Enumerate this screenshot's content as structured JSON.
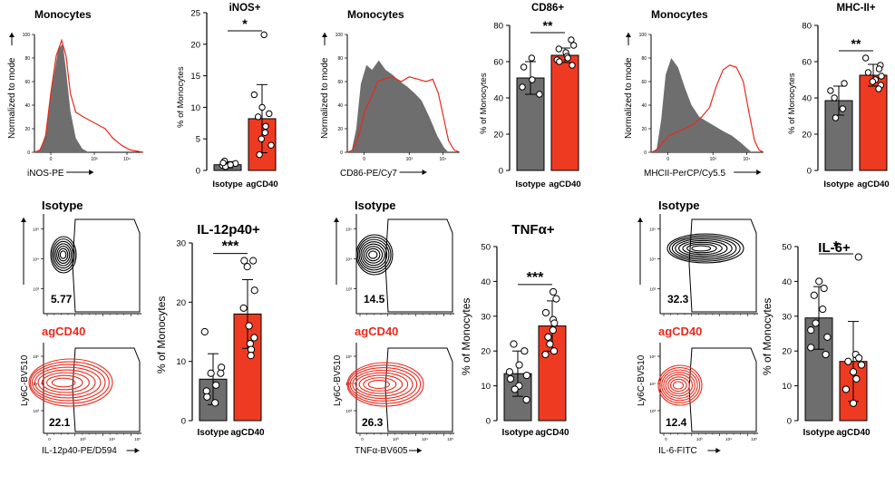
{
  "colors": {
    "isotype": "#6e6e6e",
    "agcd40": "#e8291c",
    "agcd40_fill": "#ef3a22"
  },
  "histograms": [
    {
      "title": "Monocytes",
      "ylabel": "Normalized to mode",
      "xlabel": "iNOS-PE",
      "yticks": [
        "0",
        "20",
        "40",
        "60",
        "80",
        "100"
      ],
      "xticks": [
        "0",
        "10³",
        "10⁴"
      ]
    },
    {
      "title": "Monocytes",
      "ylabel": "Normalized to mode",
      "xlabel": "CD86-PE/Cy7",
      "yticks": [
        "0",
        "20",
        "40",
        "60",
        "80",
        "100"
      ],
      "xticks": [
        "0",
        "10³",
        "10⁴"
      ]
    },
    {
      "title": "Monocytes",
      "ylabel": "Normalized to mode",
      "xlabel": "MHCII-PerCP/Cy5.5",
      "yticks": [
        "0",
        "20",
        "40",
        "60",
        "80",
        "100"
      ],
      "xticks": [
        "0",
        "10³",
        "10⁴"
      ]
    }
  ],
  "contours": [
    {
      "top_label": "Isotype",
      "bottom_label": "agCD40",
      "ylabel": "Ly6C-BV510",
      "xlabel": "IL-12p40-PE/D594",
      "top_value": "5.77",
      "bottom_value": "22.1",
      "yticks": [
        "10³",
        "10⁴",
        "10⁵"
      ],
      "xticks": [
        "0",
        "10³",
        "10⁴",
        "10⁵"
      ]
    },
    {
      "top_label": "Isotype",
      "bottom_label": "agCD40",
      "ylabel": "Ly6C-BV510",
      "xlabel": "TNFα-BV605",
      "top_value": "14.5",
      "bottom_value": "26.3",
      "yticks": [
        "10³",
        "10⁴",
        "10⁵"
      ],
      "xticks": [
        "0",
        "10³",
        "10⁴",
        "10⁵"
      ]
    },
    {
      "top_label": "Isotype",
      "bottom_label": "agCD40",
      "ylabel": "Ly6C-BV510",
      "xlabel": "IL-6-FITC",
      "top_value": "32.3",
      "bottom_value": "12.4",
      "yticks": [
        "10³",
        "10⁴",
        "10⁵"
      ],
      "xticks": [
        "0",
        "10³",
        "10⁴",
        "10⁵"
      ]
    }
  ],
  "chart_data": [
    {
      "type": "bar",
      "title": "iNOS+",
      "ylabel": "% of Monocytes",
      "ylim": [
        0,
        25
      ],
      "yticks": [
        0,
        5,
        10,
        15,
        20,
        25
      ],
      "categories": [
        "Isotype",
        "agCD40"
      ],
      "values": [
        0.9,
        8.2
      ],
      "errors": [
        0.5,
        5.4
      ],
      "significance": "*",
      "points": [
        [
          1.5,
          0.8,
          1.1,
          0.6,
          0.9,
          1.2
        ],
        [
          21.5,
          12,
          10,
          9,
          8.5,
          7,
          6,
          5,
          4,
          2.5
        ]
      ]
    },
    {
      "type": "bar",
      "title": "CD86+",
      "ylabel": "% of Monocytes",
      "ylim": [
        0,
        80
      ],
      "yticks": [
        0,
        20,
        40,
        60,
        80
      ],
      "categories": [
        "Isotype",
        "agCD40"
      ],
      "values": [
        51,
        63.5
      ],
      "errors": [
        9,
        4
      ],
      "significance": "**",
      "points": [
        [
          62,
          57,
          50,
          46,
          42
        ],
        [
          72,
          69,
          67,
          65,
          63,
          62,
          61,
          60,
          58
        ]
      ]
    },
    {
      "type": "bar",
      "title": "MHC-II+",
      "ylabel": "% of Monocytes",
      "ylim": [
        0,
        80
      ],
      "yticks": [
        0,
        20,
        40,
        60,
        80
      ],
      "categories": [
        "Isotype",
        "agCD40"
      ],
      "values": [
        38.5,
        52.5
      ],
      "errors": [
        8,
        6
      ],
      "significance": "**",
      "points": [
        [
          48,
          44,
          40,
          34,
          29
        ],
        [
          62,
          58,
          56,
          54,
          52,
          50,
          49,
          47,
          45
        ]
      ]
    },
    {
      "type": "bar",
      "title": "IL-12p40+",
      "ylabel": "% of Monocytes",
      "ylim": [
        0,
        30
      ],
      "yticks": [
        0,
        10,
        20,
        30
      ],
      "categories": [
        "Isotype",
        "agCD40"
      ],
      "values": [
        7,
        18
      ],
      "errors": [
        4.3,
        5.8
      ],
      "significance": "***",
      "points": [
        [
          15,
          9,
          8,
          8,
          6,
          5,
          4,
          3
        ],
        [
          27,
          27,
          26,
          22,
          19,
          16,
          14,
          13,
          12,
          11
        ]
      ]
    },
    {
      "type": "bar",
      "title": "TNFα+",
      "ylabel": "% of Monocytes",
      "ylim": [
        0,
        50
      ],
      "yticks": [
        0,
        10,
        20,
        30,
        40,
        50
      ],
      "categories": [
        "Isotype",
        "agCD40"
      ],
      "values": [
        13.5,
        27.2
      ],
      "errors": [
        6.5,
        7.2
      ],
      "significance": "***",
      "points": [
        [
          22,
          20,
          16,
          14,
          13,
          12,
          10,
          9,
          6
        ],
        [
          37,
          35,
          31,
          29,
          28,
          26,
          24,
          22,
          20,
          19
        ]
      ]
    },
    {
      "type": "bar",
      "title": "IL-6+",
      "ylabel": "% of Monocytes",
      "ylim": [
        0,
        50
      ],
      "yticks": [
        0,
        10,
        20,
        30,
        40,
        50
      ],
      "categories": [
        "Isotype",
        "agCD40"
      ],
      "values": [
        29.5,
        17
      ],
      "errors": [
        9,
        11.5
      ],
      "significance": "*",
      "points": [
        [
          40,
          38,
          36,
          32,
          28,
          26,
          24,
          21,
          19
        ],
        [
          47,
          19,
          18,
          17,
          16,
          14,
          12,
          9,
          5
        ]
      ]
    }
  ]
}
